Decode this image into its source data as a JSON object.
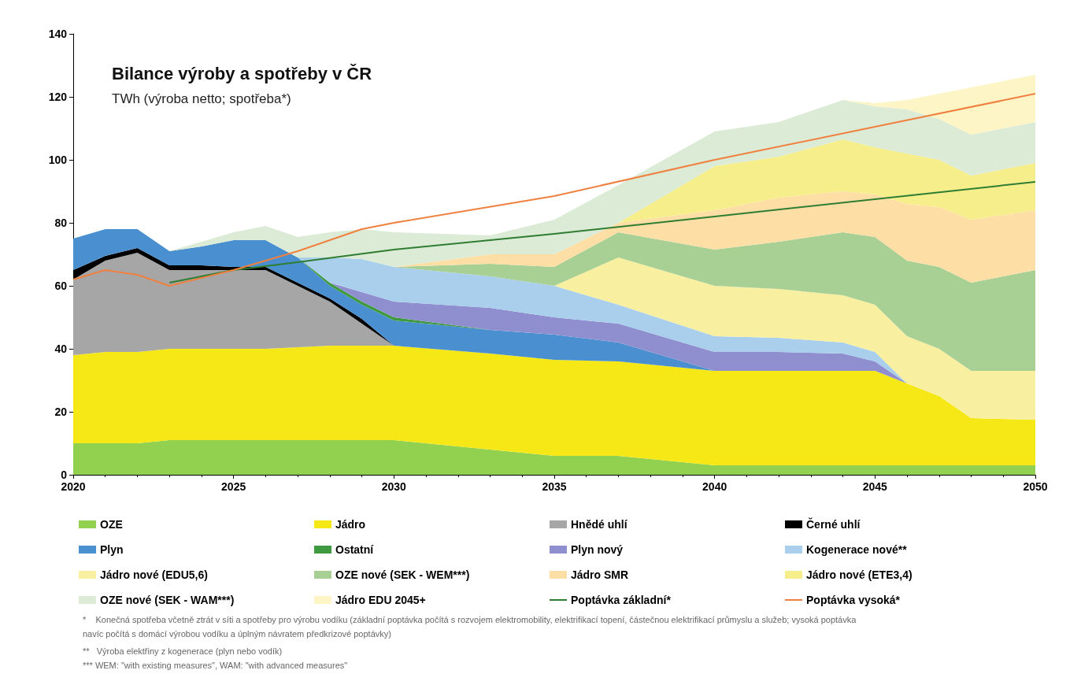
{
  "chart_data": {
    "type": "area",
    "title": "Bilance výroby a spotřeby v ČR",
    "subtitle": "TWh (výroba netto; spotřeba*)",
    "stacked": true,
    "x": [
      2020,
      2021,
      2022,
      2023,
      2024,
      2025,
      2026,
      2027,
      2028,
      2029,
      2030,
      2033,
      2035,
      2037,
      2040,
      2042,
      2044,
      2045,
      2046,
      2047,
      2048,
      2050
    ],
    "series": [
      {
        "name": "OZE",
        "color": "#92d050",
        "values": [
          10,
          10,
          10,
          11,
          11,
          11,
          11,
          11,
          11,
          11,
          11,
          8,
          6,
          6,
          3,
          3,
          3,
          3,
          3,
          3,
          3,
          3
        ]
      },
      {
        "name": "Jádro",
        "color": "#f5e816",
        "values": [
          28,
          29,
          29,
          29,
          29,
          29,
          29,
          29.5,
          30,
          30,
          30,
          30.5,
          30.5,
          30,
          30,
          30,
          30,
          30,
          26,
          22,
          15,
          14.5
        ]
      },
      {
        "name": "Hnědé uhlí",
        "color": "#a6a6a6",
        "values": [
          24,
          29,
          31.5,
          25,
          25,
          25,
          25,
          19.5,
          14,
          7,
          0,
          null,
          null,
          null,
          null,
          null,
          null,
          null,
          null,
          null,
          null,
          null
        ]
      },
      {
        "name": "Černé uhlí",
        "color": "#000000",
        "values": [
          3,
          1.5,
          1.5,
          1.5,
          1.5,
          1,
          1,
          1,
          1,
          1.5,
          0,
          null,
          null,
          null,
          null,
          null,
          null,
          null,
          null,
          null,
          null,
          null
        ]
      },
      {
        "name": "Plyn",
        "color": "#4a90d0",
        "values": [
          10,
          8.5,
          6,
          4.5,
          6,
          8.5,
          8.5,
          8,
          4,
          4.5,
          8,
          7.5,
          8,
          6,
          0,
          null,
          null,
          null,
          null,
          null,
          null,
          null
        ]
      },
      {
        "name": "Ostatní",
        "color": "#3f9a3f",
        "values": [
          null,
          null,
          null,
          null,
          null,
          null,
          null,
          0,
          1,
          1,
          1,
          0,
          null,
          null,
          null,
          null,
          null,
          null,
          null,
          null,
          null,
          null
        ]
      },
      {
        "name": "Plyn nový",
        "color": "#8f8fd0",
        "values": [
          null,
          null,
          null,
          null,
          null,
          null,
          null,
          null,
          0,
          3,
          5,
          7,
          5.5,
          6,
          6,
          6,
          5.5,
          3,
          0,
          null,
          null,
          null
        ]
      },
      {
        "name": "Kogenerace nové**",
        "color": "#a9cfec",
        "values": [
          null,
          null,
          null,
          null,
          null,
          null,
          null,
          0,
          8,
          10.5,
          11,
          10,
          10,
          6,
          5,
          4.5,
          3.5,
          3,
          0,
          null,
          null,
          null
        ]
      },
      {
        "name": "Jádro nové (EDU5,6)",
        "color": "#f8f0a0",
        "values": [
          null,
          null,
          null,
          null,
          null,
          null,
          null,
          null,
          null,
          null,
          null,
          null,
          0,
          15,
          16,
          15.5,
          15,
          15,
          15,
          15,
          15,
          15.5
        ]
      },
      {
        "name": "OZE nové (SEK - WEM***)",
        "color": "#a8cf94",
        "values": [
          null,
          null,
          null,
          null,
          null,
          null,
          null,
          null,
          null,
          null,
          0,
          4,
          6,
          8,
          11.5,
          15,
          20,
          21.5,
          24,
          26,
          28,
          32
        ]
      },
      {
        "name": "Jádro SMR",
        "color": "#fddfa6",
        "values": [
          null,
          null,
          null,
          null,
          null,
          null,
          null,
          null,
          null,
          null,
          0,
          3,
          4,
          3,
          12.5,
          14,
          13,
          13.5,
          18,
          19,
          20,
          19
        ]
      },
      {
        "name": "Jádro nové (ETE3,4)",
        "color": "#f6ee8a",
        "values": [
          null,
          null,
          null,
          null,
          null,
          null,
          null,
          null,
          null,
          null,
          null,
          null,
          null,
          0,
          14,
          13,
          16.5,
          15,
          16,
          15,
          14,
          15
        ]
      },
      {
        "name": "OZE nové (SEK - WAM***)",
        "color": "#dcebd5",
        "values": [
          null,
          null,
          null,
          0,
          1.5,
          2.5,
          4.5,
          6.5,
          8,
          9.5,
          11,
          6,
          11,
          12,
          11,
          11,
          12.5,
          13,
          14,
          13,
          13,
          13
        ]
      },
      {
        "name": "Jádro EDU 2045+",
        "color": "#fdf5c6",
        "values": [
          null,
          null,
          null,
          null,
          null,
          null,
          null,
          null,
          null,
          null,
          null,
          null,
          null,
          null,
          null,
          null,
          0,
          1,
          3,
          8,
          15,
          15
        ]
      },
      {
        "name": "Poptávka základní*",
        "type": "line",
        "color": "#2e7d32",
        "x": [
          2023,
          2025,
          2027,
          2030,
          2035,
          2040,
          2045,
          2050
        ],
        "values": [
          61,
          65,
          67.5,
          71.5,
          76.5,
          82,
          87.5,
          93
        ]
      },
      {
        "name": "Poptávka vysoká*",
        "type": "line",
        "color": "#f08040",
        "x": [
          2020,
          2021,
          2022,
          2023,
          2025,
          2027,
          2029,
          2030,
          2035,
          2040,
          2045,
          2050
        ],
        "values": [
          62,
          65,
          63.5,
          60,
          65,
          71,
          78,
          80,
          88.5,
          100,
          110.5,
          121
        ]
      }
    ],
    "xlim": [
      2020,
      2050
    ],
    "xticks": [
      2020,
      2025,
      2030,
      2035,
      2040,
      2045,
      2050
    ],
    "ylim": [
      0,
      140
    ],
    "yticks": [
      0,
      20,
      40,
      60,
      80,
      100,
      120,
      140
    ],
    "grid": false,
    "legend": "bottom",
    "annotations": [
      "*    Konečná spotřeba včetně ztrát v síti a spotřeby pro výrobu vodíku (základní poptávka počítá s rozvojem elektromobility, elektrifikací topení, částečnou elektrifikací průmyslu a služeb; vysoká poptávka navíc počítá s domácí výrobou vodíku a úplným návratem předkrizové poptávky)",
      "**   Výroba elektřiny z kogenerace (plyn nebo vodík)",
      "*** WEM: \"with existing measures\", WAM: \"with advanced measures\""
    ]
  }
}
